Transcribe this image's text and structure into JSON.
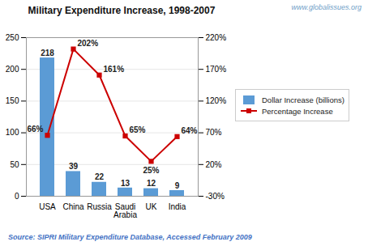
{
  "chart_data": {
    "type": "bar",
    "title": "Military Expenditure Increase, 1998-2007",
    "categories": [
      "USA",
      "China",
      "Russia",
      "Saudi\nArabia",
      "UK",
      "India"
    ],
    "series": [
      {
        "name": "Dollar Increase (billions)",
        "type": "bar",
        "color": "#5B9BD5",
        "values": [
          218,
          39,
          22,
          13,
          12,
          9
        ]
      },
      {
        "name": "Percentage Increase",
        "type": "line",
        "axis": "y2",
        "color": "#CC0000",
        "marker": "square",
        "values": [
          66,
          202,
          161,
          65,
          25,
          64
        ],
        "value_labels": [
          "66%",
          "202%",
          "161%",
          "65%",
          "25%",
          "64%"
        ]
      }
    ],
    "ylim": [
      0,
      250
    ],
    "yticks": [
      0,
      50,
      100,
      150,
      200,
      250
    ],
    "y2lim": [
      -30,
      220
    ],
    "y2ticks": [
      {
        "value": -30,
        "label": "-30%"
      },
      {
        "value": 20,
        "label": "20%"
      },
      {
        "value": 70,
        "label": "70%"
      },
      {
        "value": 120,
        "label": "120%"
      },
      {
        "value": 170,
        "label": "170%"
      },
      {
        "value": 220,
        "label": "220%"
      }
    ],
    "grid": true,
    "legend": "right",
    "data_labels": true,
    "annotations": [
      {
        "text": "www.globalissues.org",
        "color": "#70A0C8"
      },
      {
        "text": "Source: SIPRI Military Expenditure Database, Accessed February 2009",
        "color": "#4472C4"
      }
    ]
  }
}
